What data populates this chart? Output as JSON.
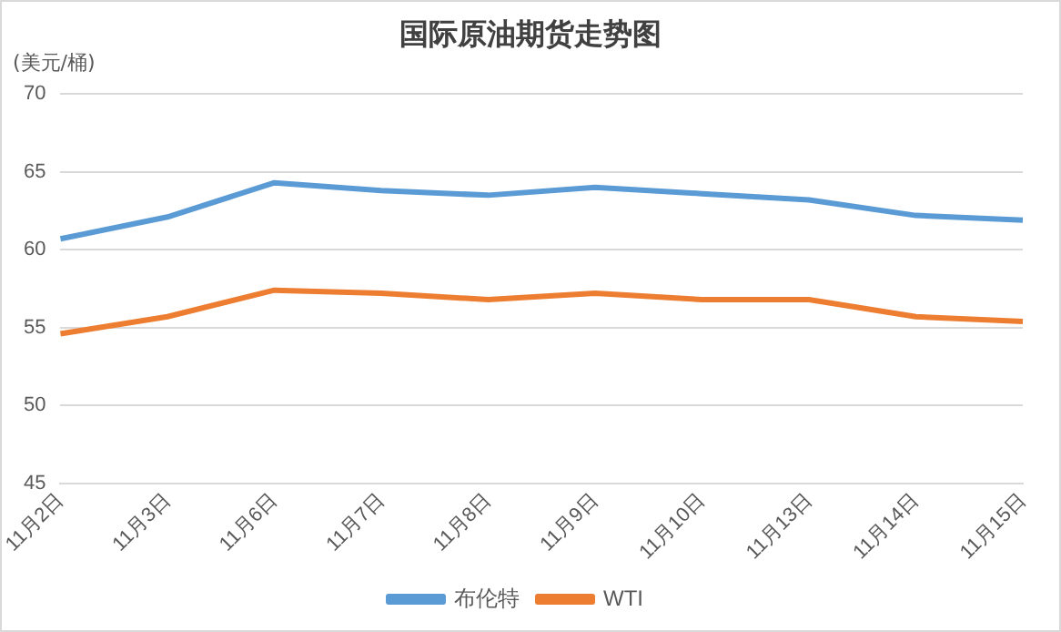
{
  "chart_data": {
    "type": "line",
    "title": "国际原油期货走势图",
    "ylabel": "(美元/桶)",
    "categories": [
      "11月2日",
      "11月3日",
      "11月6日",
      "11月7日",
      "11月8日",
      "11月9日",
      "11月10日",
      "11月13日",
      "11月14日",
      "11月15日"
    ],
    "series": [
      {
        "name": "布伦特",
        "color": "#5b9bd5",
        "values": [
          60.7,
          62.1,
          64.3,
          63.8,
          63.5,
          64.0,
          63.6,
          63.2,
          62.2,
          61.9
        ]
      },
      {
        "name": "WTI",
        "color": "#ed7d31",
        "values": [
          54.6,
          55.7,
          57.4,
          57.2,
          56.8,
          57.2,
          56.8,
          56.8,
          55.7,
          55.4
        ]
      }
    ],
    "ylim": [
      45,
      70
    ],
    "yticks": [
      45,
      50,
      55,
      60,
      65,
      70
    ],
    "grid": "y",
    "legend": "bottom",
    "marker": "none",
    "line_style": "solid"
  }
}
